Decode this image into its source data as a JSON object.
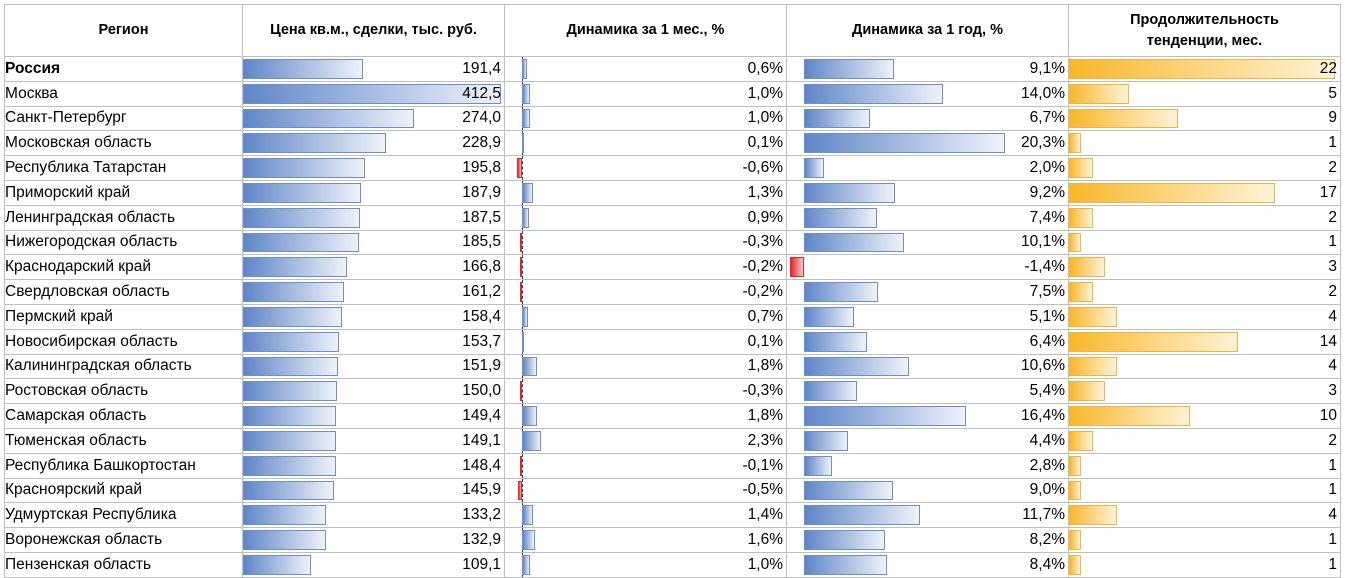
{
  "chart_data": {
    "type": "table",
    "columns": [
      "Регион",
      "Цена кв.м., сделки, тыс. руб.",
      "Динамика за 1 мес., %",
      "Динамика за 1 год, %",
      "Продолжительность тенденции, мес."
    ],
    "rows": [
      {
        "region": "Россия",
        "price": 191.4,
        "price_label": "191,4",
        "m1": 0.6,
        "m1_label": "0,6%",
        "y1": 9.1,
        "y1_label": "9,1%",
        "dur": 22,
        "dur_label": "22",
        "bold": true
      },
      {
        "region": "Москва",
        "price": 412.5,
        "price_label": "412,5",
        "m1": 1.0,
        "m1_label": "1,0%",
        "y1": 14.0,
        "y1_label": "14,0%",
        "dur": 5,
        "dur_label": "5"
      },
      {
        "region": "Санкт-Петербург",
        "price": 274.0,
        "price_label": "274,0",
        "m1": 1.0,
        "m1_label": "1,0%",
        "y1": 6.7,
        "y1_label": "6,7%",
        "dur": 9,
        "dur_label": "9"
      },
      {
        "region": "Московская область",
        "price": 228.9,
        "price_label": "228,9",
        "m1": 0.1,
        "m1_label": "0,1%",
        "y1": 20.3,
        "y1_label": "20,3%",
        "dur": 1,
        "dur_label": "1"
      },
      {
        "region": "Республика Татарстан",
        "price": 195.8,
        "price_label": "195,8",
        "m1": -0.6,
        "m1_label": "-0,6%",
        "y1": 2.0,
        "y1_label": "2,0%",
        "dur": 2,
        "dur_label": "2"
      },
      {
        "region": "Приморский край",
        "price": 187.9,
        "price_label": "187,9",
        "m1": 1.3,
        "m1_label": "1,3%",
        "y1": 9.2,
        "y1_label": "9,2%",
        "dur": 17,
        "dur_label": "17"
      },
      {
        "region": "Ленинградская область",
        "price": 187.5,
        "price_label": "187,5",
        "m1": 0.9,
        "m1_label": "0,9%",
        "y1": 7.4,
        "y1_label": "7,4%",
        "dur": 2,
        "dur_label": "2"
      },
      {
        "region": "Нижегородская область",
        "price": 185.5,
        "price_label": "185,5",
        "m1": -0.3,
        "m1_label": "-0,3%",
        "y1": 10.1,
        "y1_label": "10,1%",
        "dur": 1,
        "dur_label": "1"
      },
      {
        "region": "Краснодарский край",
        "price": 166.8,
        "price_label": "166,8",
        "m1": -0.2,
        "m1_label": "-0,2%",
        "y1": -1.4,
        "y1_label": "-1,4%",
        "dur": 3,
        "dur_label": "3"
      },
      {
        "region": "Свердловская область",
        "price": 161.2,
        "price_label": "161,2",
        "m1": -0.2,
        "m1_label": "-0,2%",
        "y1": 7.5,
        "y1_label": "7,5%",
        "dur": 2,
        "dur_label": "2"
      },
      {
        "region": "Пермский край",
        "price": 158.4,
        "price_label": "158,4",
        "m1": 0.7,
        "m1_label": "0,7%",
        "y1": 5.1,
        "y1_label": "5,1%",
        "dur": 4,
        "dur_label": "4"
      },
      {
        "region": "Новосибирская область",
        "price": 153.7,
        "price_label": "153,7",
        "m1": 0.1,
        "m1_label": "0,1%",
        "y1": 6.4,
        "y1_label": "6,4%",
        "dur": 14,
        "dur_label": "14"
      },
      {
        "region": "Калининградская область",
        "price": 151.9,
        "price_label": "151,9",
        "m1": 1.8,
        "m1_label": "1,8%",
        "y1": 10.6,
        "y1_label": "10,6%",
        "dur": 4,
        "dur_label": "4"
      },
      {
        "region": "Ростовская область",
        "price": 150.0,
        "price_label": "150,0",
        "m1": -0.3,
        "m1_label": "-0,3%",
        "y1": 5.4,
        "y1_label": "5,4%",
        "dur": 3,
        "dur_label": "3"
      },
      {
        "region": "Самарская область",
        "price": 149.4,
        "price_label": "149,4",
        "m1": 1.8,
        "m1_label": "1,8%",
        "y1": 16.4,
        "y1_label": "16,4%",
        "dur": 10,
        "dur_label": "10"
      },
      {
        "region": "Тюменская область",
        "price": 149.1,
        "price_label": "149,1",
        "m1": 2.3,
        "m1_label": "2,3%",
        "y1": 4.4,
        "y1_label": "4,4%",
        "dur": 2,
        "dur_label": "2"
      },
      {
        "region": "Республика Башкортостан",
        "price": 148.4,
        "price_label": "148,4",
        "m1": -0.1,
        "m1_label": "-0,1%",
        "y1": 2.8,
        "y1_label": "2,8%",
        "dur": 1,
        "dur_label": "1"
      },
      {
        "region": "Красноярский край",
        "price": 145.9,
        "price_label": "145,9",
        "m1": -0.5,
        "m1_label": "-0,5%",
        "y1": 9.0,
        "y1_label": "9,0%",
        "dur": 1,
        "dur_label": "1"
      },
      {
        "region": "Удмуртская Республика",
        "price": 133.2,
        "price_label": "133,2",
        "m1": 1.4,
        "m1_label": "1,4%",
        "y1": 11.7,
        "y1_label": "11,7%",
        "dur": 4,
        "dur_label": "4"
      },
      {
        "region": "Воронежская область",
        "price": 132.9,
        "price_label": "132,9",
        "m1": 1.6,
        "m1_label": "1,6%",
        "y1": 8.2,
        "y1_label": "8,2%",
        "dur": 1,
        "dur_label": "1"
      },
      {
        "region": "Пензенская область",
        "price": 109.1,
        "price_label": "109,1",
        "m1": 1.0,
        "m1_label": "1,0%",
        "y1": 8.4,
        "y1_label": "8,4%",
        "dur": 1,
        "dur_label": "1"
      }
    ],
    "colors": {
      "positive": "#5f86c8",
      "negative": "#e8262b",
      "duration": "#f9b72a",
      "grid": "#bfbfbf"
    }
  }
}
